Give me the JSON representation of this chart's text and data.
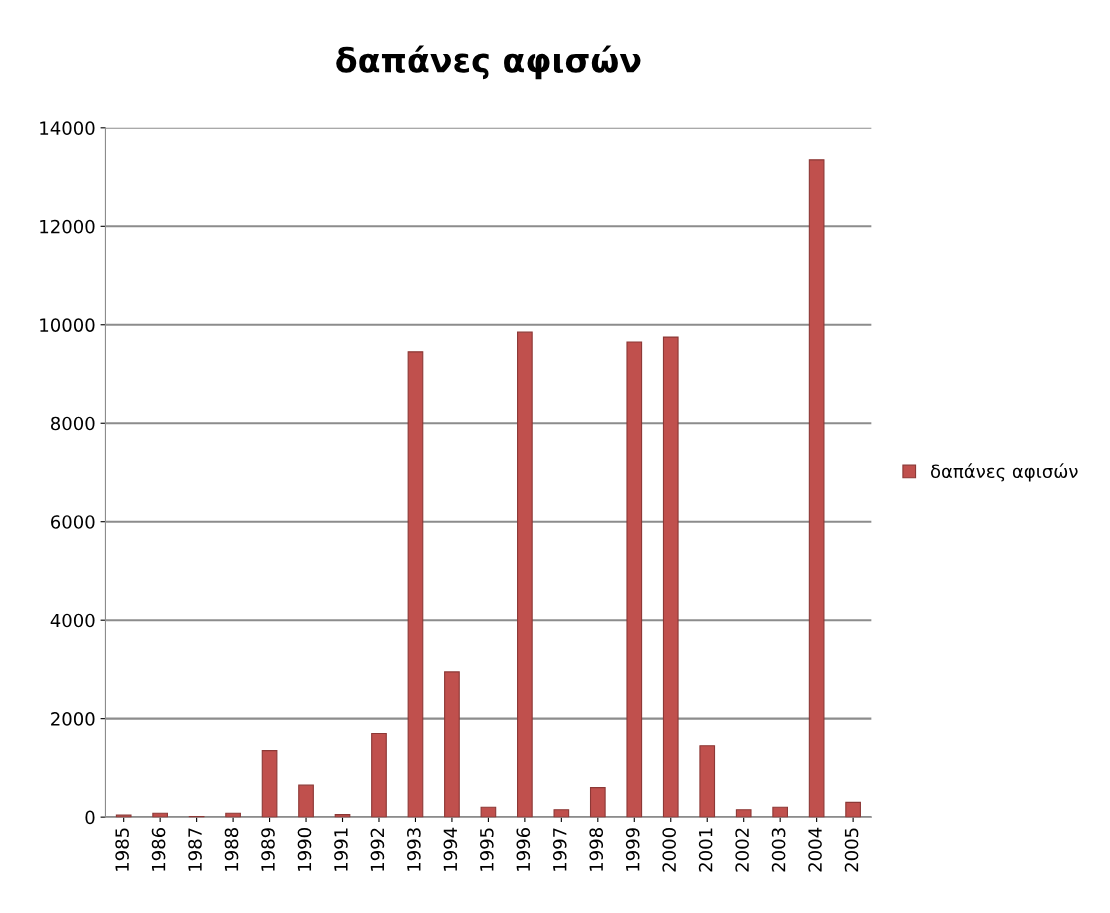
{
  "chart_data": {
    "type": "bar",
    "title": "δαπάνες αφισών",
    "categories": [
      "1985",
      "1986",
      "1987",
      "1988",
      "1989",
      "1990",
      "1991",
      "1992",
      "1993",
      "1994",
      "1995",
      "1996",
      "1997",
      "1998",
      "1999",
      "2000",
      "2001",
      "2002",
      "2003",
      "2004",
      "2005"
    ],
    "series": [
      {
        "name": "δαπάνες αφισών",
        "color": "#c0504d",
        "values": [
          40,
          80,
          10,
          80,
          1350,
          650,
          50,
          1700,
          9450,
          2950,
          200,
          9850,
          150,
          600,
          9650,
          9750,
          1450,
          150,
          200,
          13350,
          300
        ]
      }
    ],
    "ylim": [
      0,
      14000
    ],
    "yticks": [
      0,
      2000,
      4000,
      6000,
      8000,
      10000,
      12000,
      14000
    ],
    "grid": "y",
    "legend": "right"
  }
}
